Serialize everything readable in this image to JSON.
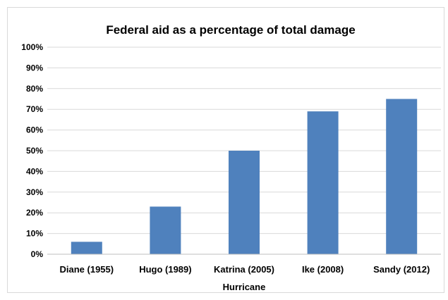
{
  "chart_data": {
    "type": "bar",
    "title": "Federal aid as a percentage of total damage",
    "xlabel": "Hurricane",
    "ylabel": "",
    "categories": [
      "Diane (1955)",
      "Hugo (1989)",
      "Katrina (2005)",
      "Ike (2008)",
      "Sandy (2012)"
    ],
    "values": [
      6,
      23,
      50,
      69,
      75
    ],
    "ylim": [
      0,
      100
    ],
    "yticks": [
      0,
      10,
      20,
      30,
      40,
      50,
      60,
      70,
      80,
      90,
      100
    ],
    "ytick_labels": [
      "0%",
      "10%",
      "20%",
      "30%",
      "40%",
      "50%",
      "60%",
      "70%",
      "80%",
      "90%",
      "100%"
    ],
    "grid": true,
    "legend": "none",
    "colors": {
      "bar": "#4f81bd",
      "grid": "#d9d9d9",
      "axis": "#bfbfbf"
    }
  }
}
